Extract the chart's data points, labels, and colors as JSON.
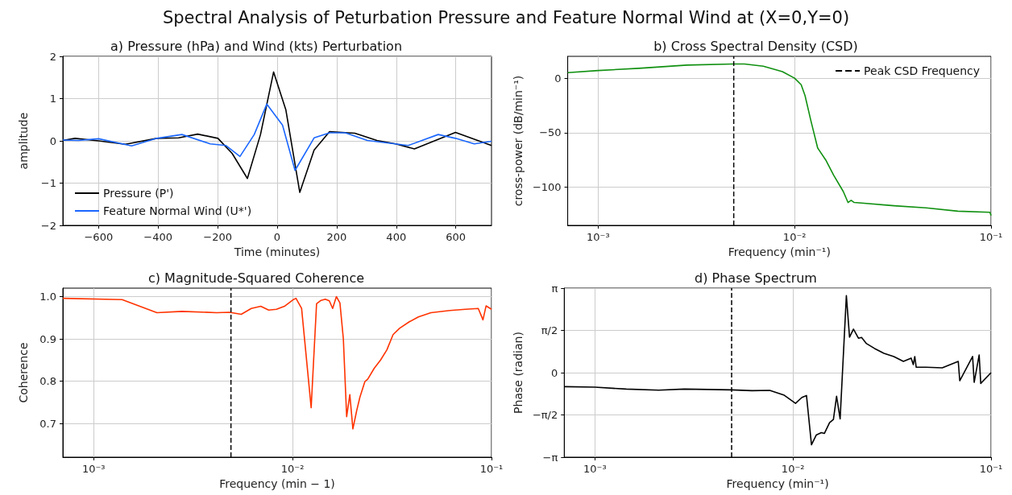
{
  "chart_data": [
    {
      "type": "line",
      "title": "Spectral Analysis of Peturbation Pressure and Feature Normal Wind at (X=0,Y=0)",
      "subtitle": "a) Pressure (hPa) and Wind (kts) Perturbation",
      "xlabel": "Time (minutes)",
      "ylabel": "amplitude",
      "xlim": [
        -720,
        720
      ],
      "ylim": [
        -2,
        2
      ],
      "xticks": [
        -600,
        -400,
        -200,
        0,
        200,
        400,
        600
      ],
      "yticks": [
        -2,
        -1,
        0,
        1,
        2
      ],
      "grid": true,
      "legend": "bottom left",
      "marker": "none",
      "series": [
        {
          "name": "Pressure (P')",
          "color": "#000000",
          "x": [
            -720,
            -679,
            -600,
            -510,
            -404,
            -331,
            -267,
            -199,
            -151,
            -100,
            -56,
            -12,
            29,
            76,
            124,
            176,
            261,
            335,
            398,
            461,
            599,
            720
          ],
          "values": [
            0.01,
            0.06,
            0.0,
            -0.08,
            0.06,
            0.07,
            0.16,
            0.06,
            -0.3,
            -0.89,
            0.15,
            1.63,
            0.74,
            -1.22,
            -0.22,
            0.22,
            0.18,
            0.01,
            -0.07,
            -0.19,
            0.2,
            -0.11
          ]
        },
        {
          "name": "Feature Normal Wind (U*')",
          "color": "#1a66ff",
          "x": [
            -720,
            -668,
            -600,
            -489,
            -404,
            -320,
            -225,
            -172,
            -125,
            -77,
            -35,
            18,
            60,
            124,
            176,
            229,
            303,
            440,
            541,
            599,
            662,
            720
          ],
          "values": [
            0.02,
            0.01,
            0.05,
            -0.12,
            0.06,
            0.15,
            -0.07,
            -0.11,
            -0.37,
            0.15,
            0.87,
            0.37,
            -0.7,
            0.07,
            0.19,
            0.19,
            0.01,
            -0.11,
            0.15,
            0.06,
            -0.07,
            -0.01
          ]
        }
      ]
    },
    {
      "type": "line",
      "subtitle": "b) Cross Spectral Density (CSD)",
      "xlabel": "Frequency (min⁻¹)",
      "ylabel": "cross-power (dB/min⁻¹)",
      "log": "x",
      "xlim": [
        0.0007,
        0.1
      ],
      "ylim": [
        -135,
        20
      ],
      "xticks": [
        {
          "value": 0.001,
          "label": "10⁻³"
        },
        {
          "value": 0.01,
          "label": "10⁻²"
        },
        {
          "value": 0.1,
          "label": "10⁻¹"
        }
      ],
      "yticks": [
        -100,
        -50,
        0
      ],
      "grid": true,
      "legend": "top right",
      "marker": "none",
      "ref_lines": [
        {
          "axis": "x",
          "value": 0.0049,
          "label": "Peak CSD Frequency",
          "color": "#000000",
          "line_style": "dashed"
        }
      ],
      "series": [
        {
          "color": "#109010",
          "x": [
            0.0007,
            0.001,
            0.00161,
            0.00283,
            0.00486,
            0.00555,
            0.00693,
            0.00867,
            0.01,
            0.0108,
            0.0113,
            0.0121,
            0.0131,
            0.0144,
            0.0158,
            0.0177,
            0.0187,
            0.0194,
            0.0201,
            0.0321,
            0.0467,
            0.0678,
            0.0987,
            0.1
          ],
          "values": [
            5,
            7,
            9,
            12,
            13,
            13,
            11,
            6,
            0,
            -6,
            -16,
            -39,
            -64,
            -75,
            -89,
            -104,
            -114,
            -112,
            -114,
            -117,
            -119,
            -122,
            -123,
            -126
          ]
        }
      ]
    },
    {
      "type": "line",
      "subtitle": "c) Magnitude-Squared Coherence",
      "xlabel": "Frequency (min − 1)",
      "ylabel": "Coherence",
      "log": "x",
      "xlim": [
        0.0007,
        0.1
      ],
      "ylim": [
        0.62,
        1.02
      ],
      "xticks": [
        {
          "value": 0.001,
          "label": "10⁻³"
        },
        {
          "value": 0.01,
          "label": "10⁻²"
        },
        {
          "value": 0.1,
          "label": "10⁻¹"
        }
      ],
      "yticks": [
        0.7,
        0.8,
        0.9,
        {
          "value": 1,
          "label": "1.0"
        }
      ],
      "grid": true,
      "marker": "none",
      "ref_lines": [
        {
          "axis": "x",
          "value": 0.0049,
          "color": "#000000",
          "line_style": "dashed"
        }
      ],
      "series": [
        {
          "color": "#ff3300",
          "x": [
            0.0007,
            0.00139,
            0.00208,
            0.00278,
            0.00415,
            0.00482,
            0.00552,
            0.0062,
            0.00692,
            0.00758,
            0.0083,
            0.0091,
            0.0101,
            0.0104,
            0.0111,
            0.0124,
            0.0132,
            0.0139,
            0.0146,
            0.0153,
            0.0159,
            0.0166,
            0.0173,
            0.018,
            0.0187,
            0.0194,
            0.0201,
            0.021,
            0.0218,
            0.0231,
            0.0239,
            0.0257,
            0.0277,
            0.0298,
            0.032,
            0.0345,
            0.0385,
            0.0429,
            0.0496,
            0.0618,
            0.0741,
            0.0858,
            0.0906,
            0.0939,
            0.1
          ],
          "values": [
            0.996,
            0.993,
            0.962,
            0.965,
            0.962,
            0.963,
            0.958,
            0.972,
            0.977,
            0.968,
            0.97,
            0.977,
            0.993,
            0.996,
            0.972,
            0.737,
            0.983,
            0.991,
            0.994,
            0.99,
            0.972,
            1.0,
            0.985,
            0.9,
            0.716,
            0.768,
            0.687,
            0.73,
            0.762,
            0.799,
            0.805,
            0.83,
            0.85,
            0.874,
            0.91,
            0.925,
            0.94,
            0.952,
            0.962,
            0.967,
            0.97,
            0.972,
            0.945,
            0.978,
            0.97
          ]
        }
      ]
    },
    {
      "type": "line",
      "subtitle": "d) Phase Spectrum",
      "xlabel": "Frequency (min⁻¹)",
      "ylabel": "Phase (radian)",
      "log": "x",
      "xlim": [
        0.0007,
        0.1
      ],
      "ylim": [
        -3.1416,
        3.1416
      ],
      "xticks": [
        {
          "value": 0.001,
          "label": "10⁻³"
        },
        {
          "value": 0.01,
          "label": "10⁻²"
        },
        {
          "value": 0.1,
          "label": "10⁻¹"
        }
      ],
      "yticks": [
        {
          "value": -3.1416,
          "label": "−π"
        },
        {
          "value": -1.5708,
          "label": "−π/2"
        },
        0,
        {
          "value": 1.5708,
          "label": "π/2"
        },
        {
          "value": 3.1416,
          "label": "π"
        }
      ],
      "grid": true,
      "marker": "none",
      "ref_lines": [
        {
          "axis": "x",
          "value": 0.0049,
          "color": "#000000",
          "line_style": "dashed"
        }
      ],
      "series": [
        {
          "color": "#000000",
          "x": [
            0.0007,
            0.001,
            0.00144,
            0.0021,
            0.00283,
            0.00487,
            0.00621,
            0.00763,
            0.00904,
            0.0103,
            0.0111,
            0.0117,
            0.0124,
            0.0131,
            0.0139,
            0.0144,
            0.0153,
            0.016,
            0.0166,
            0.0173,
            0.0186,
            0.0193,
            0.0202,
            0.0214,
            0.0222,
            0.0235,
            0.0258,
            0.0288,
            0.0323,
            0.0361,
            0.0395,
            0.0405,
            0.0412,
            0.0419,
            0.047,
            0.0567,
            0.0683,
            0.0695,
            0.0807,
            0.0822,
            0.0871,
            0.0887,
            0.1
          ],
          "values": [
            -0.52,
            -0.54,
            -0.61,
            -0.65,
            -0.61,
            -0.64,
            -0.67,
            -0.66,
            -0.84,
            -1.14,
            -0.92,
            -0.85,
            -2.68,
            -2.32,
            -2.23,
            -2.26,
            -1.86,
            -1.74,
            -0.88,
            -1.72,
            2.86,
            1.32,
            1.62,
            1.28,
            1.31,
            1.08,
            0.9,
            0.72,
            0.6,
            0.42,
            0.54,
            0.3,
            0.6,
            0.2,
            0.2,
            0.18,
            0.42,
            -0.3,
            0.6,
            -0.36,
            0.66,
            -0.4,
            0.0
          ]
        }
      ]
    }
  ]
}
